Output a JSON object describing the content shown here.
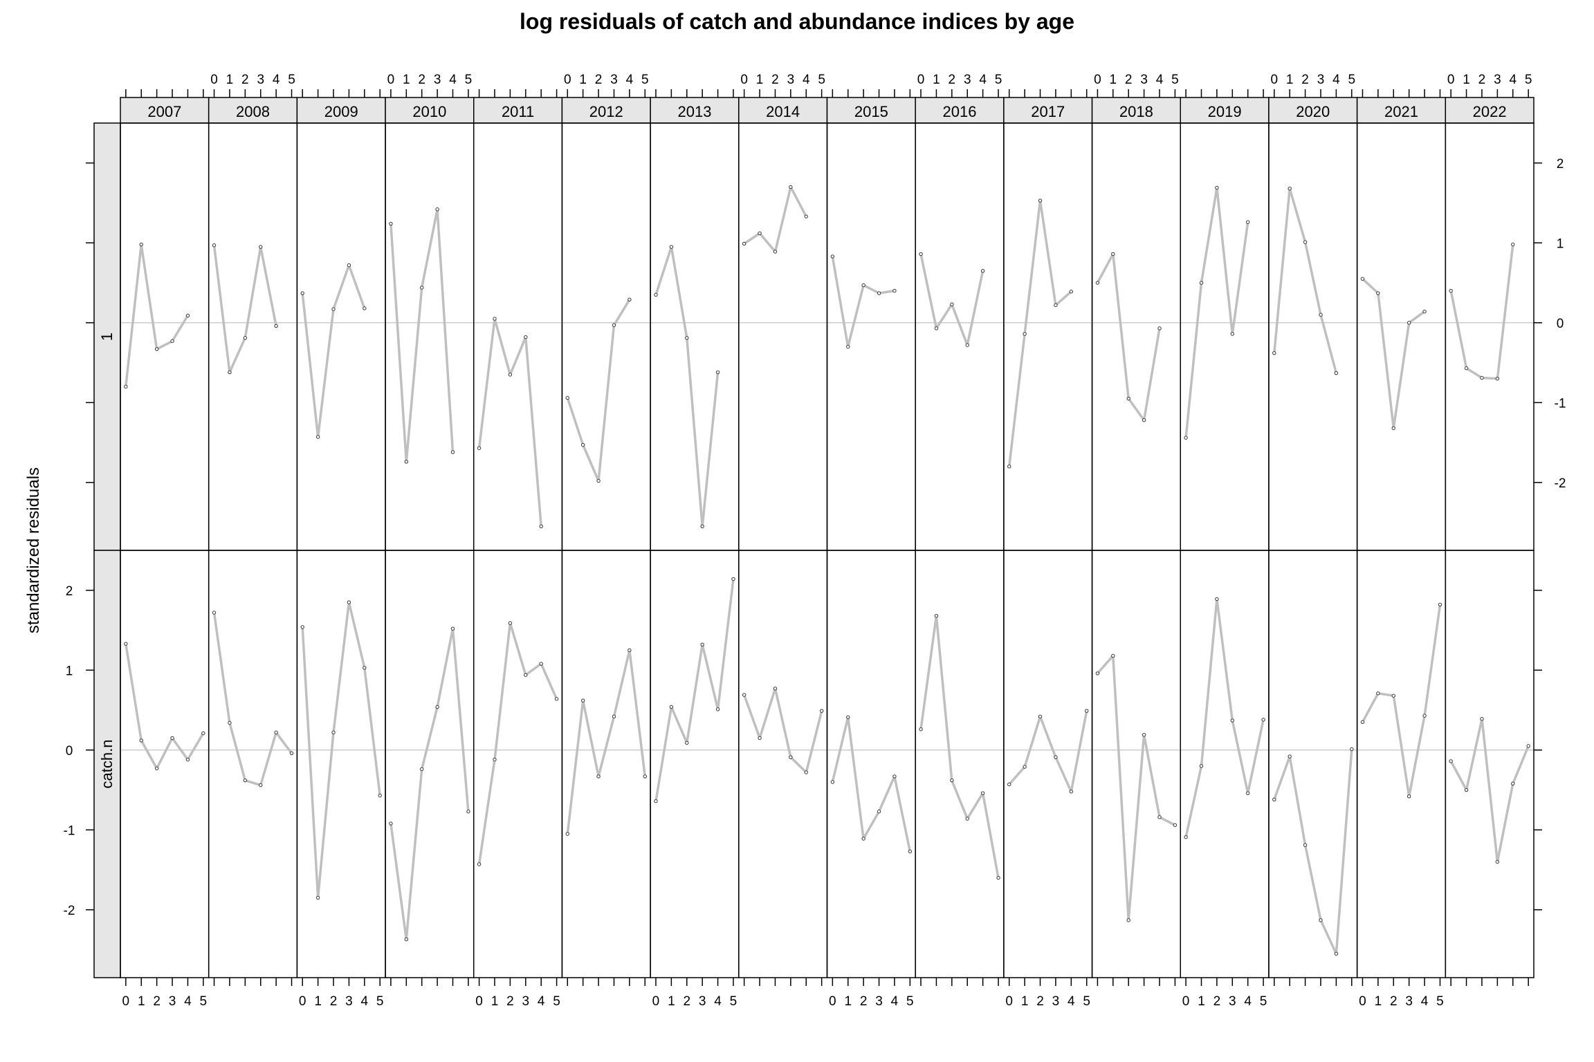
{
  "chart_data": {
    "type": "line",
    "title": "log residuals of catch and abundance indices by age",
    "ylabel": "standardized residuals",
    "xlabel": "",
    "years": [
      "2007",
      "2008",
      "2009",
      "2010",
      "2011",
      "2012",
      "2013",
      "2014",
      "2015",
      "2016",
      "2017",
      "2018",
      "2019",
      "2020",
      "2021",
      "2022"
    ],
    "ages": [
      0,
      1,
      2,
      3,
      4,
      5
    ],
    "x_tick_labels": [
      "0",
      "1",
      "2",
      "3",
      "4",
      "5"
    ],
    "y_ticks": [
      -2,
      -1,
      0,
      1,
      2
    ],
    "y_tick_labels": [
      "-2",
      "-1",
      "0",
      "1",
      "2"
    ],
    "ylim": [
      -2.85,
      2.5
    ],
    "xlim": [
      -0.35,
      5.35
    ],
    "reference_line": 0,
    "line_color": "#bfbfbf",
    "strip_color": "#e6e6e6",
    "rows": [
      {
        "name": "1",
        "series": [
          [
            -0.8,
            0.98,
            -0.33,
            -0.23,
            0.09,
            null
          ],
          [
            0.97,
            -0.62,
            -0.19,
            0.95,
            -0.04,
            null
          ],
          [
            0.37,
            -1.43,
            0.17,
            0.72,
            0.18,
            null
          ],
          [
            1.24,
            -1.74,
            0.44,
            1.42,
            -1.62,
            null
          ],
          [
            -1.57,
            0.05,
            -0.65,
            -0.18,
            -2.55,
            null
          ],
          [
            -0.94,
            -1.53,
            -1.98,
            -0.03,
            0.29,
            null
          ],
          [
            0.35,
            0.95,
            -0.19,
            -2.55,
            -0.62,
            null
          ],
          [
            0.99,
            1.12,
            0.89,
            1.7,
            1.33,
            null
          ],
          [
            0.83,
            -0.3,
            0.47,
            0.37,
            0.4,
            null
          ],
          [
            0.86,
            -0.07,
            0.23,
            -0.28,
            0.65,
            null
          ],
          [
            -1.8,
            -0.14,
            1.53,
            0.22,
            0.39,
            null
          ],
          [
            0.5,
            0.86,
            -0.95,
            -1.22,
            -0.07,
            null
          ],
          [
            -1.44,
            0.5,
            1.69,
            -0.14,
            1.26,
            null
          ],
          [
            -0.38,
            1.68,
            1.01,
            0.1,
            -0.63,
            null
          ],
          [
            0.55,
            0.37,
            -1.32,
            0.0,
            0.14,
            null
          ],
          [
            0.4,
            -0.57,
            -0.69,
            -0.7,
            0.98,
            null
          ]
        ]
      },
      {
        "name": "catch.n",
        "series": [
          [
            1.33,
            0.12,
            -0.23,
            0.15,
            -0.12,
            0.21
          ],
          [
            1.72,
            0.34,
            -0.38,
            -0.44,
            0.22,
            -0.04
          ],
          [
            1.54,
            -1.85,
            0.22,
            1.85,
            1.03,
            -0.57
          ],
          [
            -0.92,
            -2.37,
            -0.24,
            0.54,
            1.52,
            -0.77
          ],
          [
            -1.43,
            -0.12,
            1.59,
            0.94,
            1.08,
            0.64
          ],
          [
            -1.05,
            0.62,
            -0.33,
            0.42,
            1.25,
            -0.33
          ],
          [
            -0.64,
            0.54,
            0.09,
            1.32,
            0.51,
            2.14
          ],
          [
            0.69,
            0.15,
            0.77,
            -0.09,
            -0.28,
            0.49
          ],
          [
            -0.4,
            0.41,
            -1.11,
            -0.77,
            -0.33,
            -1.27
          ],
          [
            0.26,
            1.68,
            -0.38,
            -0.86,
            -0.54,
            -1.6
          ],
          [
            -0.43,
            -0.21,
            0.42,
            -0.09,
            -0.52,
            0.49
          ],
          [
            0.96,
            1.18,
            -2.13,
            0.19,
            -0.84,
            -0.94
          ],
          [
            -1.09,
            -0.2,
            1.89,
            0.37,
            -0.54,
            0.38
          ],
          [
            -0.62,
            -0.08,
            -1.19,
            -2.13,
            -2.55,
            0.01
          ],
          [
            0.35,
            0.71,
            0.68,
            -0.58,
            0.43,
            1.82
          ],
          [
            -0.14,
            -0.5,
            0.39,
            -1.4,
            -0.42,
            0.05
          ]
        ]
      }
    ]
  }
}
